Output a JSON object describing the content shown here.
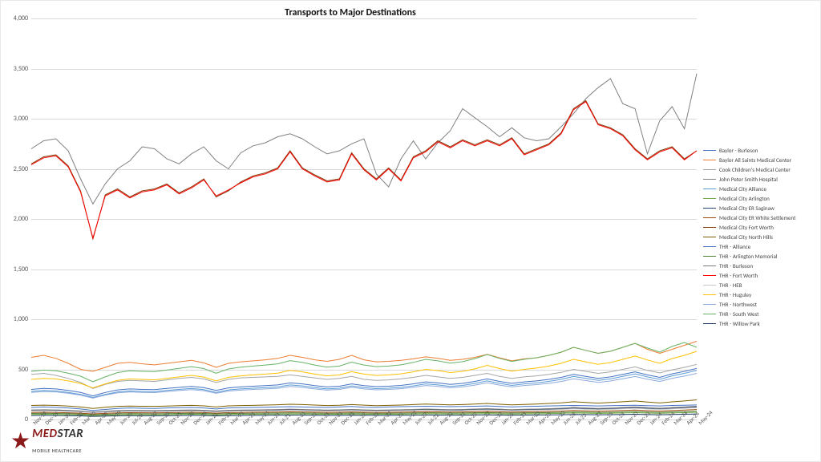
{
  "chart": {
    "type": "line",
    "title": "Transports to Major Destinations",
    "title_fontsize": 12,
    "background_color": "#ffffff",
    "grid_color": "#d9d9d9",
    "axis_label_fontsize": 8,
    "axis_label_color": "#555555",
    "line_width": 1.0,
    "ylim": [
      0,
      4000
    ],
    "ytick_step": 500,
    "yticks": [
      "0",
      "500",
      "1,000",
      "1,500",
      "2,000",
      "2,500",
      "3,000",
      "3,500",
      "4,000"
    ],
    "x_categories": [
      "Nov-19",
      "Dec-19",
      "Jan-20",
      "Feb-20",
      "Mar-20",
      "Apr-20",
      "May-20",
      "Jun-20",
      "Jul-20",
      "Aug-20",
      "Sep-20",
      "Oct-20",
      "Nov-20",
      "Dec-20",
      "Jan-21",
      "Feb-21",
      "Mar-21",
      "Apr-21",
      "May-21",
      "Jun-21",
      "Jul-21",
      "Aug-21",
      "Sep-21",
      "Oct-21",
      "Nov-21",
      "Dec-21",
      "Jan-22",
      "Feb-22",
      "Mar-22",
      "Apr-22",
      "May-22",
      "Jun-22",
      "Jul-22",
      "Aug-22",
      "Sep-22",
      "Oct-22",
      "Nov-22",
      "Dec-22",
      "Jan-23",
      "Feb-23",
      "Mar-23",
      "Apr-23",
      "May-23",
      "Jun-23",
      "Jul-23",
      "Aug-23",
      "Sep-23",
      "Oct-23",
      "Nov-23",
      "Dec-23",
      "Jan-24",
      "Feb-24",
      "Mar-24",
      "Apr-24",
      "May-24"
    ],
    "series": [
      {
        "name": "Baylor - Burleson",
        "color": "#4472c4",
        "values": [
          120,
          125,
          120,
          115,
          105,
          90,
          100,
          110,
          115,
          112,
          110,
          115,
          118,
          120,
          115,
          105,
          115,
          118,
          120,
          122,
          125,
          128,
          125,
          122,
          120,
          125,
          130,
          122,
          120,
          125,
          128,
          130,
          132,
          130,
          128,
          130,
          132,
          135,
          130,
          125,
          130,
          132,
          135,
          138,
          140,
          138,
          135,
          138,
          140,
          142,
          138,
          135,
          140,
          142,
          145
        ]
      },
      {
        "name": "Baylor All Saints Medical Center",
        "color": "#ed7d31",
        "values": [
          620,
          640,
          610,
          560,
          500,
          480,
          520,
          560,
          570,
          555,
          545,
          560,
          575,
          590,
          565,
          520,
          560,
          575,
          585,
          595,
          610,
          640,
          620,
          595,
          580,
          600,
          640,
          595,
          575,
          580,
          590,
          605,
          625,
          610,
          590,
          600,
          620,
          650,
          615,
          585,
          605,
          615,
          640,
          670,
          720,
          690,
          660,
          680,
          720,
          760,
          700,
          660,
          700,
          740,
          780
        ]
      },
      {
        "name": "Cook Children's Medical Center",
        "color": "#a5a5a5",
        "values": [
          450,
          460,
          440,
          410,
          370,
          310,
          350,
          380,
          390,
          385,
          380,
          395,
          410,
          420,
          405,
          370,
          400,
          415,
          420,
          425,
          430,
          445,
          430,
          415,
          400,
          410,
          430,
          400,
          390,
          395,
          405,
          420,
          440,
          425,
          410,
          420,
          440,
          460,
          430,
          410,
          425,
          435,
          450,
          470,
          500,
          480,
          460,
          475,
          500,
          525,
          490,
          465,
          495,
          520,
          550
        ]
      },
      {
        "name": "John Peter Smith Hospital",
        "color": "#808080",
        "values": [
          2700,
          2780,
          2800,
          2680,
          2400,
          2150,
          2350,
          2500,
          2580,
          2720,
          2700,
          2600,
          2550,
          2650,
          2720,
          2580,
          2500,
          2660,
          2730,
          2760,
          2820,
          2850,
          2800,
          2720,
          2650,
          2680,
          2750,
          2800,
          2450,
          2320,
          2600,
          2780,
          2600,
          2760,
          2880,
          3100,
          3010,
          2920,
          2820,
          2910,
          2810,
          2780,
          2800,
          2920,
          3050,
          3200,
          3310,
          3400,
          3150,
          3100,
          2650,
          2980,
          3120,
          2900,
          3450
        ]
      },
      {
        "name": "Medical City Alliance",
        "color": "#5b9bd5",
        "values": [
          280,
          290,
          285,
          270,
          250,
          220,
          250,
          275,
          285,
          280,
          278,
          290,
          300,
          310,
          298,
          270,
          295,
          305,
          312,
          318,
          325,
          345,
          335,
          318,
          305,
          312,
          335,
          318,
          308,
          312,
          320,
          335,
          355,
          345,
          330,
          340,
          360,
          385,
          360,
          340,
          355,
          365,
          380,
          400,
          430,
          410,
          390,
          405,
          430,
          455,
          425,
          400,
          435,
          460,
          490
        ]
      },
      {
        "name": "Medical City Arlington",
        "color": "#70ad47",
        "values": [
          50,
          52,
          50,
          48,
          45,
          38,
          42,
          46,
          48,
          47,
          46,
          48,
          50,
          52,
          50,
          45,
          49,
          51,
          52,
          53,
          54,
          56,
          55,
          53,
          51,
          52,
          55,
          53,
          51,
          52,
          53,
          55,
          57,
          56,
          54,
          55,
          57,
          59,
          56,
          54,
          56,
          57,
          59,
          61,
          65,
          63,
          60,
          62,
          65,
          68,
          64,
          61,
          65,
          68,
          72
        ]
      },
      {
        "name": "Medical City ER Saginaw",
        "color": "#264478",
        "values": [
          90,
          92,
          90,
          86,
          80,
          70,
          78,
          84,
          86,
          85,
          84,
          86,
          88,
          90,
          87,
          80,
          87,
          89,
          90,
          92,
          94,
          97,
          95,
          92,
          89,
          91,
          95,
          91,
          88,
          90,
          92,
          95,
          98,
          96,
          93,
          95,
          98,
          102,
          97,
          93,
          96,
          98,
          102,
          106,
          113,
          108,
          104,
          108,
          113,
          118,
          111,
          105,
          112,
          118,
          125
        ]
      },
      {
        "name": "Medical City ER White Settlement",
        "color": "#9e480e",
        "values": [
          70,
          72,
          70,
          67,
          63,
          55,
          61,
          66,
          68,
          67,
          66,
          68,
          70,
          72,
          69,
          63,
          69,
          70,
          72,
          73,
          74,
          77,
          75,
          73,
          71,
          72,
          75,
          72,
          70,
          71,
          73,
          75,
          78,
          76,
          74,
          75,
          78,
          81,
          77,
          74,
          76,
          78,
          81,
          84,
          90,
          86,
          83,
          86,
          90,
          94,
          88,
          84,
          89,
          94,
          99
        ]
      },
      {
        "name": "Medical City Fort Worth",
        "color": "#843c0c",
        "values": [
          2550,
          2620,
          2640,
          2530,
          2280,
          1800,
          2240,
          2300,
          2220,
          2280,
          2300,
          2350,
          2260,
          2320,
          2400,
          2220,
          2280,
          2370,
          2430,
          2460,
          2510,
          2680,
          2510,
          2440,
          2380,
          2400,
          2660,
          2500,
          2400,
          2510,
          2390,
          2620,
          2680,
          2780,
          2720,
          2790,
          2740,
          2790,
          2740,
          2810,
          2650,
          2700,
          2750,
          2860,
          3100,
          3180,
          2950,
          2910,
          2840,
          2700,
          2600,
          2680,
          2720,
          2600,
          2680
        ]
      },
      {
        "name": "Medical City North Hills",
        "color": "#7f6000",
        "values": [
          140,
          143,
          140,
          134,
          125,
          110,
          122,
          131,
          134,
          132,
          131,
          134,
          138,
          141,
          136,
          125,
          136,
          139,
          141,
          144,
          147,
          152,
          149,
          144,
          139,
          142,
          149,
          143,
          138,
          141,
          144,
          149,
          154,
          150,
          146,
          149,
          154,
          160,
          152,
          146,
          150,
          154,
          160,
          166,
          177,
          170,
          163,
          170,
          177,
          185,
          174,
          165,
          176,
          185,
          196
        ]
      },
      {
        "name": "THR - Alliance",
        "color": "#4472c4",
        "values": [
          300,
          310,
          305,
          290,
          270,
          235,
          270,
          295,
          305,
          300,
          298,
          310,
          320,
          330,
          318,
          290,
          315,
          325,
          332,
          338,
          345,
          365,
          355,
          338,
          325,
          332,
          355,
          338,
          328,
          332,
          340,
          355,
          375,
          365,
          350,
          360,
          380,
          405,
          380,
          360,
          375,
          385,
          400,
          420,
          450,
          430,
          410,
          425,
          450,
          475,
          445,
          420,
          455,
          480,
          510
        ]
      },
      {
        "name": "THR - Arlington Memorial",
        "color": "#548235",
        "values": [
          60,
          62,
          60,
          58,
          54,
          47,
          52,
          56,
          58,
          57,
          56,
          58,
          60,
          62,
          60,
          55,
          59,
          61,
          62,
          63,
          64,
          66,
          65,
          63,
          61,
          62,
          65,
          63,
          61,
          62,
          63,
          65,
          67,
          66,
          64,
          65,
          67,
          69,
          66,
          64,
          66,
          67,
          69,
          71,
          75,
          73,
          70,
          72,
          75,
          78,
          74,
          71,
          75,
          78,
          82
        ]
      },
      {
        "name": "THR - Burleson",
        "color": "#7b7b7b",
        "values": [
          95,
          97,
          95,
          91,
          85,
          74,
          82,
          89,
          91,
          90,
          89,
          91,
          93,
          95,
          92,
          85,
          92,
          94,
          95,
          97,
          99,
          103,
          100,
          97,
          94,
          96,
          100,
          96,
          93,
          95,
          97,
          100,
          104,
          101,
          98,
          100,
          104,
          108,
          103,
          98,
          102,
          104,
          108,
          112,
          120,
          115,
          110,
          114,
          120,
          125,
          118,
          112,
          119,
          125,
          132
        ]
      },
      {
        "name": "THR - Fort Worth",
        "color": "#ff0000",
        "values": [
          2540,
          2610,
          2630,
          2520,
          2270,
          1810,
          2230,
          2290,
          2210,
          2270,
          2290,
          2340,
          2250,
          2310,
          2390,
          2230,
          2290,
          2360,
          2420,
          2450,
          2500,
          2670,
          2500,
          2430,
          2370,
          2390,
          2650,
          2490,
          2390,
          2500,
          2380,
          2610,
          2670,
          2770,
          2710,
          2780,
          2730,
          2780,
          2730,
          2800,
          2640,
          2690,
          2740,
          2850,
          3090,
          3170,
          2940,
          2900,
          2830,
          2690,
          2590,
          2670,
          2710,
          2590,
          2680
        ]
      },
      {
        "name": "THR - HEB",
        "color": "#c6c6c6",
        "values": [
          85,
          87,
          85,
          81,
          76,
          66,
          73,
          79,
          81,
          80,
          79,
          81,
          83,
          85,
          82,
          75,
          82,
          84,
          85,
          87,
          88,
          92,
          90,
          87,
          84,
          86,
          90,
          86,
          83,
          85,
          87,
          90,
          93,
          90,
          88,
          89,
          93,
          96,
          92,
          88,
          91,
          93,
          96,
          100,
          107,
          102,
          98,
          102,
          107,
          112,
          105,
          100,
          106,
          112,
          118
        ]
      },
      {
        "name": "THR - Huguley",
        "color": "#ffc000",
        "values": [
          400,
          410,
          405,
          385,
          360,
          315,
          355,
          390,
          405,
          400,
          395,
          410,
          425,
          440,
          423,
          385,
          420,
          435,
          445,
          453,
          462,
          490,
          475,
          453,
          435,
          445,
          477,
          453,
          439,
          445,
          455,
          475,
          500,
          488,
          468,
          480,
          505,
          540,
          508,
          482,
          500,
          513,
          533,
          560,
          600,
          575,
          550,
          568,
          600,
          633,
          594,
          560,
          608,
          640,
          680
        ]
      },
      {
        "name": "THR - Northwest",
        "color": "#8faadc",
        "values": [
          270,
          278,
          275,
          261,
          243,
          213,
          243,
          266,
          275,
          270,
          268,
          279,
          289,
          298,
          287,
          261,
          284,
          293,
          300,
          305,
          311,
          330,
          320,
          305,
          293,
          300,
          321,
          305,
          296,
          300,
          307,
          321,
          339,
          330,
          316,
          325,
          343,
          366,
          343,
          325,
          339,
          348,
          361,
          379,
          406,
          388,
          370,
          384,
          406,
          429,
          402,
          379,
          411,
          433,
          460
        ]
      },
      {
        "name": "THR - South West",
        "color": "#66b366",
        "values": [
          480,
          493,
          486,
          462,
          432,
          377,
          425,
          468,
          486,
          480,
          477,
          493,
          510,
          527,
          508,
          462,
          504,
          522,
          533,
          543,
          555,
          587,
          570,
          543,
          522,
          533,
          572,
          543,
          527,
          533,
          545,
          570,
          600,
          585,
          562,
          577,
          607,
          648,
          610,
          579,
          600,
          616,
          640,
          672,
          720,
          690,
          660,
          681,
          720,
          759,
          713,
          672,
          729,
          768,
          720
        ]
      },
      {
        "name": "THR - Willow Park",
        "color": "#1f3864",
        "values": [
          40,
          41,
          40,
          38,
          36,
          31,
          34,
          37,
          38,
          38,
          37,
          38,
          40,
          41,
          40,
          36,
          39,
          40,
          41,
          42,
          43,
          44,
          43,
          42,
          41,
          41,
          43,
          42,
          41,
          41,
          42,
          43,
          45,
          44,
          43,
          43,
          45,
          46,
          44,
          43,
          44,
          45,
          46,
          47,
          50,
          49,
          47,
          48,
          50,
          52,
          49,
          47,
          50,
          52,
          55
        ]
      }
    ],
    "legend": {
      "position": "right",
      "fontsize": 7
    }
  },
  "logo": {
    "brand_a": "MED",
    "brand_b": "STAR",
    "tagline": "MOBILE HEALTHCARE",
    "star_color": "#8b1a1a"
  }
}
